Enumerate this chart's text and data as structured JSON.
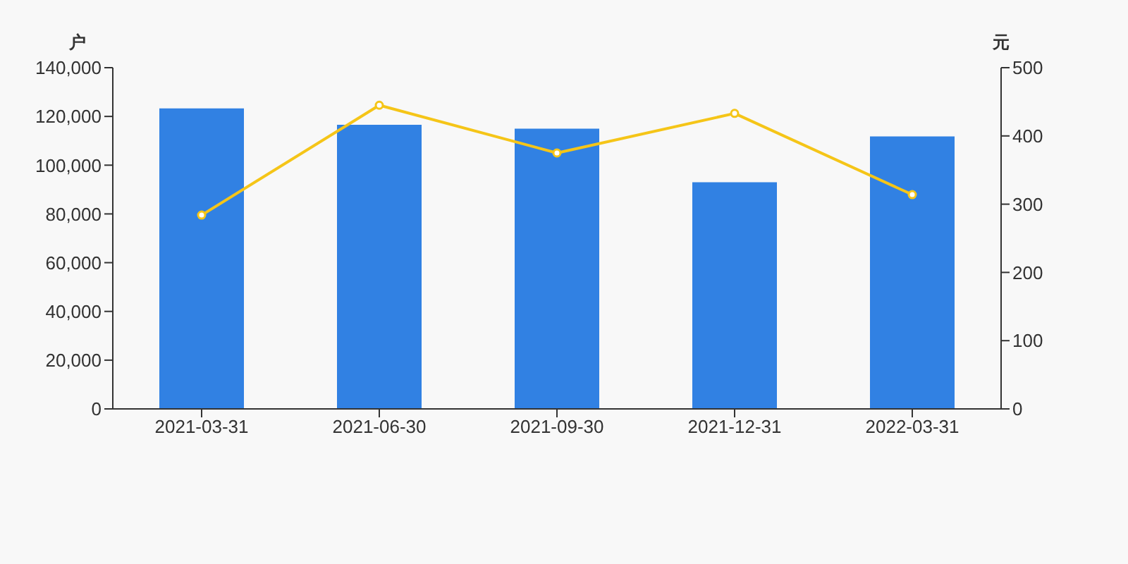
{
  "chart_data": {
    "type": "bar",
    "categories": [
      "2021-03-31",
      "2021-06-30",
      "2021-09-30",
      "2021-12-31",
      "2022-03-31"
    ],
    "ylabel": "户",
    "y2label": "元",
    "series": [
      {
        "color": "#3181e3",
        "values": [
          123300,
          116600,
          115000,
          93000,
          111800
        ]
      },
      {
        "type": "line",
        "axis": "y2",
        "color": "#f5c518",
        "marker": "circle",
        "values": [
          284,
          445,
          375,
          433,
          314
        ]
      }
    ],
    "ylim": [
      0,
      140000
    ],
    "yticks": [
      {
        "value": 0,
        "label": "0"
      },
      {
        "value": 20000,
        "label": "20,000"
      },
      {
        "value": 40000,
        "label": "40,000"
      },
      {
        "value": 60000,
        "label": "60,000"
      },
      {
        "value": 80000,
        "label": "80,000"
      },
      {
        "value": 100000,
        "label": "100,000"
      },
      {
        "value": 120000,
        "label": "120,000"
      },
      {
        "value": 140000,
        "label": "140,000"
      }
    ],
    "y2lim": [
      0,
      500
    ],
    "y2ticks": [
      0,
      100,
      200,
      300,
      400,
      500
    ],
    "grid": false,
    "legend": false
  }
}
